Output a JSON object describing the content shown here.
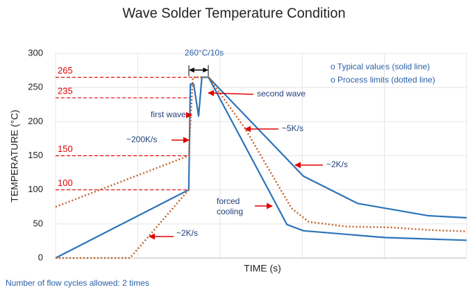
{
  "chart_data": {
    "type": "line",
    "title": "Wave Solder Temperature Condition",
    "xlabel": "TIME (s)",
    "ylabel": "TEMPERATURE (°C)",
    "xlim": [
      0,
      100
    ],
    "xticks": [
      0,
      20,
      40,
      60,
      80,
      100
    ],
    "ylim": [
      0,
      300
    ],
    "yticks": [
      0,
      50,
      100,
      150,
      200,
      250,
      300
    ],
    "grid": true,
    "series": [
      {
        "color": "#2b73b9",
        "style": "solid",
        "x": [
          0,
          32.4,
          32.8,
          33.6,
          34.8,
          35.6,
          37.2,
          56.3,
          60.3,
          80.2,
          100
        ],
        "values": [
          0,
          100,
          255,
          255,
          208,
          265,
          265,
          49,
          40,
          30,
          26
        ]
      },
      {
        "color": "#2b73b9",
        "style": "solid",
        "x": [
          37.2,
          60.3,
          73.5,
          90.7,
          100
        ],
        "values": [
          265,
          120,
          80,
          62,
          59
        ]
      },
      {
        "color": "#c0622b",
        "style": "dotted",
        "x": [
          0,
          32.4,
          33.4,
          37.2,
          46.1,
          57.4,
          61.6,
          70.9,
          81.1,
          91.2,
          100
        ],
        "values": [
          75,
          150,
          265,
          265,
          190,
          73,
          53,
          46,
          45,
          41,
          39
        ]
      },
      {
        "color": "#c0622b",
        "style": "dotted",
        "x": [
          0,
          18.1,
          32.4
        ],
        "values": [
          0,
          0,
          100
        ]
      }
    ],
    "reference_lines": [
      265,
      235,
      150,
      100
    ],
    "reference_color": "#e00000",
    "window_label": "260°C/10s",
    "annotations": [
      "first wave",
      "second wave",
      "~200K/s",
      "~5K/s",
      "~2K/s",
      "forced\ncooling",
      "~2K/s"
    ],
    "notes": [
      "o Typical values (solid line)",
      "o Process limits (dotted line)"
    ],
    "footnote": "Number of flow cycles allowed: 2 times"
  }
}
